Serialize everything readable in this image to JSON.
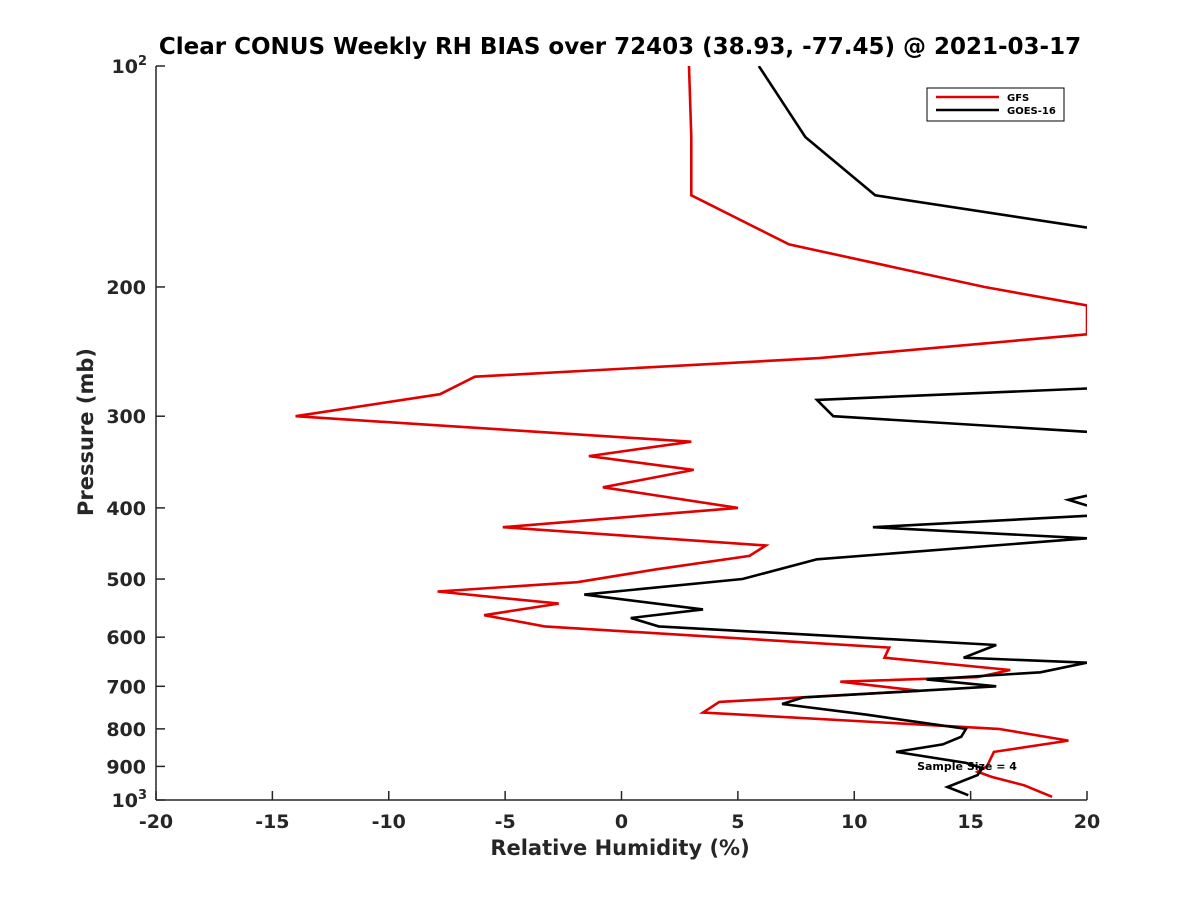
{
  "chart_data": {
    "type": "line",
    "title": "Clear CONUS Weekly RH BIAS over 72403 (38.93, -77.45) @ 2021-03-17",
    "xlabel": "Relative Humidity (%)",
    "ylabel": "Pressure (mb)",
    "xlim": [
      -20,
      20
    ],
    "ylim": [
      100,
      1000
    ],
    "y_scale": "log",
    "y_reversed": true,
    "grid": false,
    "legend_position": "top-right",
    "x_ticks": [
      "-20",
      "-15",
      "-10",
      "-5",
      "0",
      "5",
      "10",
      "15",
      "20"
    ],
    "y_ticks": [
      {
        "value": 100,
        "base": "10",
        "exp": "2"
      },
      {
        "value": 200,
        "base": "200",
        "exp": ""
      },
      {
        "value": 300,
        "base": "300",
        "exp": ""
      },
      {
        "value": 400,
        "base": "400",
        "exp": ""
      },
      {
        "value": 500,
        "base": "500",
        "exp": ""
      },
      {
        "value": 600,
        "base": "600",
        "exp": ""
      },
      {
        "value": 700,
        "base": "700",
        "exp": ""
      },
      {
        "value": 800,
        "base": "800",
        "exp": ""
      },
      {
        "value": 900,
        "base": "900",
        "exp": ""
      },
      {
        "value": 1000,
        "base": "10",
        "exp": "3"
      }
    ],
    "annotation": "Sample Size = 4",
    "series": [
      {
        "name": "GFS",
        "color": "#e00000",
        "points": [
          [
            2.9,
            100
          ],
          [
            3.0,
            125
          ],
          [
            3.0,
            150
          ],
          [
            7.2,
            175
          ],
          [
            15.6,
            200
          ],
          [
            20.0,
            212
          ],
          [
            20.0,
            232
          ],
          [
            8.5,
            250
          ],
          [
            -6.3,
            265
          ],
          [
            -7.8,
            280
          ],
          [
            -14.0,
            300
          ],
          [
            3.0,
            325
          ],
          [
            -1.4,
            340
          ],
          [
            3.1,
            355
          ],
          [
            -0.8,
            375
          ],
          [
            5.0,
            400
          ],
          [
            -5.1,
            425
          ],
          [
            6.2,
            450
          ],
          [
            5.5,
            465
          ],
          [
            1.5,
            485
          ],
          [
            -1.9,
            505
          ],
          [
            -7.9,
            520
          ],
          [
            -2.7,
            540
          ],
          [
            -5.9,
            560
          ],
          [
            -3.3,
            580
          ],
          [
            11.5,
            620
          ],
          [
            11.3,
            640
          ],
          [
            16.7,
            665
          ],
          [
            15.3,
            680
          ],
          [
            9.4,
            690
          ],
          [
            12.8,
            710
          ],
          [
            4.2,
            735
          ],
          [
            3.5,
            760
          ],
          [
            16.2,
            800
          ],
          [
            19.2,
            830
          ],
          [
            16.0,
            860
          ],
          [
            15.7,
            900
          ],
          [
            15.3,
            915
          ],
          [
            15.9,
            930
          ],
          [
            17.3,
            955
          ],
          [
            18.5,
            990
          ]
        ]
      },
      {
        "name": "GOES-16",
        "color": "#000000",
        "points": [
          [
            5.9,
            100
          ],
          [
            7.9,
            125
          ],
          [
            10.9,
            150
          ],
          [
            20.0,
            166
          ],
          [
            null,
            null
          ],
          [
            20.0,
            275
          ],
          [
            8.4,
            285
          ],
          [
            9.1,
            300
          ],
          [
            20.0,
            315
          ],
          [
            null,
            null
          ],
          [
            20.0,
            385
          ],
          [
            19.2,
            390
          ],
          [
            20.0,
            397
          ],
          [
            null,
            null
          ],
          [
            20.0,
            410
          ],
          [
            10.8,
            425
          ],
          [
            20.0,
            440
          ],
          [
            8.4,
            470
          ],
          [
            5.2,
            500
          ],
          [
            -1.6,
            525
          ],
          [
            3.5,
            550
          ],
          [
            0.4,
            565
          ],
          [
            1.6,
            580
          ],
          [
            16.1,
            615
          ],
          [
            14.7,
            640
          ],
          [
            20.0,
            650
          ],
          [
            18.0,
            670
          ],
          [
            13.1,
            685
          ],
          [
            16.1,
            700
          ],
          [
            7.8,
            725
          ],
          [
            6.9,
            740
          ],
          [
            10.5,
            765
          ],
          [
            14.8,
            800
          ],
          [
            14.6,
            820
          ],
          [
            13.8,
            840
          ],
          [
            11.8,
            860
          ],
          [
            14.8,
            890
          ],
          [
            15.5,
            905
          ],
          [
            15.3,
            925
          ],
          [
            14.0,
            960
          ],
          [
            14.9,
            985
          ]
        ]
      }
    ]
  }
}
